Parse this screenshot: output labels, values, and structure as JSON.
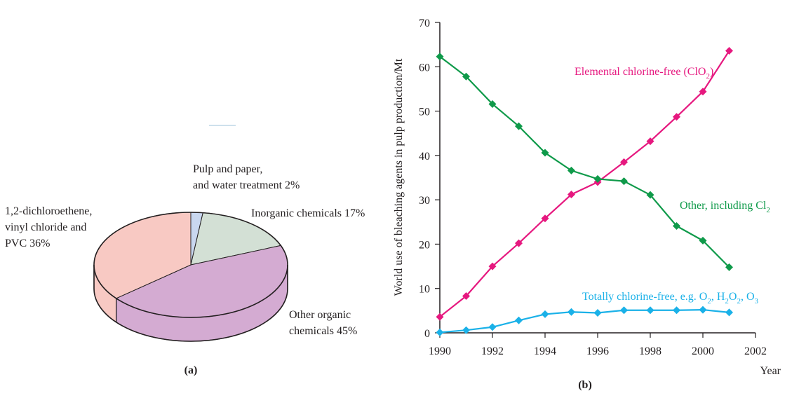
{
  "chart_data": [
    {
      "type": "pie",
      "panel_label": "(a)",
      "style": "3d",
      "slices": [
        {
          "label_lines": [
            "Pulp and paper,",
            "and water treatment 2%"
          ],
          "name": "Pulp and paper, and water treatment",
          "value": 2,
          "color": "#c9d7ef"
        },
        {
          "label_lines": [
            "Inorganic chemicals 17%"
          ],
          "name": "Inorganic chemicals",
          "value": 17,
          "color": "#d3e0d5"
        },
        {
          "label_lines": [
            "Other organic",
            "chemicals 45%"
          ],
          "name": "Other organic chemicals",
          "value": 45,
          "color": "#d4abd2"
        },
        {
          "label_lines": [
            "1,2-dichloroethene,",
            "vinyl chloride and",
            "PVC 36%"
          ],
          "name": "1,2-dichloroethene, vinyl chloride and PVC",
          "value": 36,
          "color": "#f8c9c3"
        }
      ]
    },
    {
      "type": "line",
      "panel_label": "(b)",
      "xlabel": "Year",
      "ylabel": "World use of bleaching agents in pulp production/Mt",
      "xlim": [
        1990,
        2002
      ],
      "ylim": [
        0,
        70
      ],
      "xticks": [
        "1990",
        "1992",
        "1994",
        "1996",
        "1998",
        "2000",
        "2002"
      ],
      "yticks": [
        "0",
        "10",
        "20",
        "30",
        "40",
        "50",
        "60",
        "70"
      ],
      "grid": false,
      "x": [
        1990,
        1991,
        1992,
        1993,
        1994,
        1995,
        1996,
        1997,
        1998,
        1999,
        2000,
        2001
      ],
      "series": [
        {
          "name": "Elemental chlorine-free (ClO2)",
          "label_main": "Elemental chlorine-free (ClO",
          "label_sub": "2",
          "label_tail": ")",
          "color": "#e6187f",
          "values": [
            3.6,
            8.3,
            15.0,
            20.2,
            25.8,
            31.2,
            34.0,
            38.5,
            43.2,
            48.7,
            54.4,
            63.6
          ]
        },
        {
          "name": "Other, including Cl2",
          "label_main": "Other, including Cl",
          "label_sub": "2",
          "label_tail": "",
          "color": "#0f9a4a",
          "values": [
            62.3,
            57.8,
            51.6,
            46.6,
            40.6,
            36.6,
            34.7,
            34.2,
            31.1,
            24.1,
            20.8,
            14.8
          ]
        },
        {
          "name": "Totally chlorine-free, e.g. O2, H2O2, O3",
          "label_main": "",
          "label_sub": "",
          "label_tail": "",
          "color": "#1ab1e8",
          "label_parts": [
            [
              "Totally chlorine-free, e.g. O",
              ""
            ],
            [
              "2",
              ""
            ],
            [
              ", H",
              ""
            ],
            [
              "2",
              ""
            ],
            [
              "O",
              ""
            ],
            [
              "2",
              ""
            ],
            [
              ", O",
              ""
            ],
            [
              "3",
              ""
            ]
          ],
          "values": [
            0.1,
            0.6,
            1.3,
            2.8,
            4.2,
            4.7,
            4.5,
            5.1,
            5.1,
            5.1,
            5.2,
            4.6
          ]
        }
      ]
    }
  ]
}
